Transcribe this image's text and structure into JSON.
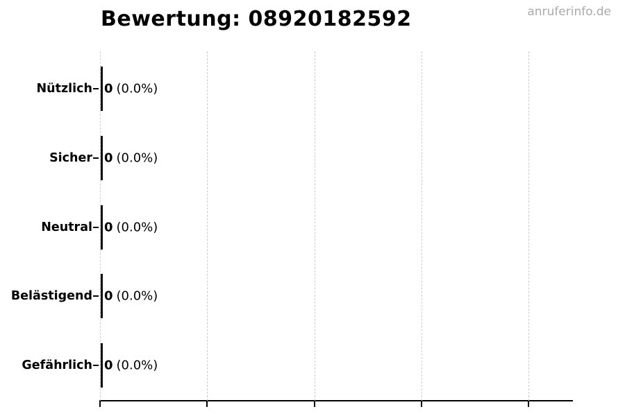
{
  "title": "Bewertung: 08920182592",
  "watermark": "anruferinfo.de",
  "chart_data": {
    "type": "bar",
    "orientation": "horizontal",
    "title": "Bewertung: 08920182592",
    "categories": [
      "Nützlich",
      "Sicher",
      "Neutral",
      "Belästigend",
      "Gefährlich"
    ],
    "values": [
      0,
      0,
      0,
      0,
      0
    ],
    "percent": [
      0.0,
      0.0,
      0.0,
      0.0,
      0.0
    ],
    "count_labels": [
      "0",
      "0",
      "0",
      "0",
      "0"
    ],
    "percent_labels": [
      "(0.0%)",
      "(0.0%)",
      "(0.0%)",
      "(0.0%)",
      "(0.0%)"
    ],
    "xlabel": "",
    "ylabel": "",
    "x_tick_labels": [],
    "x_gridline_count": 5,
    "grid": "vertical-dashed",
    "legend": "none"
  },
  "colors": {
    "background": "#ffffff",
    "text": "#000000",
    "bar_edge": "#0a0a0a",
    "gridline": "#cbcbcb",
    "axis": "#000000",
    "watermark": "#ababab"
  }
}
